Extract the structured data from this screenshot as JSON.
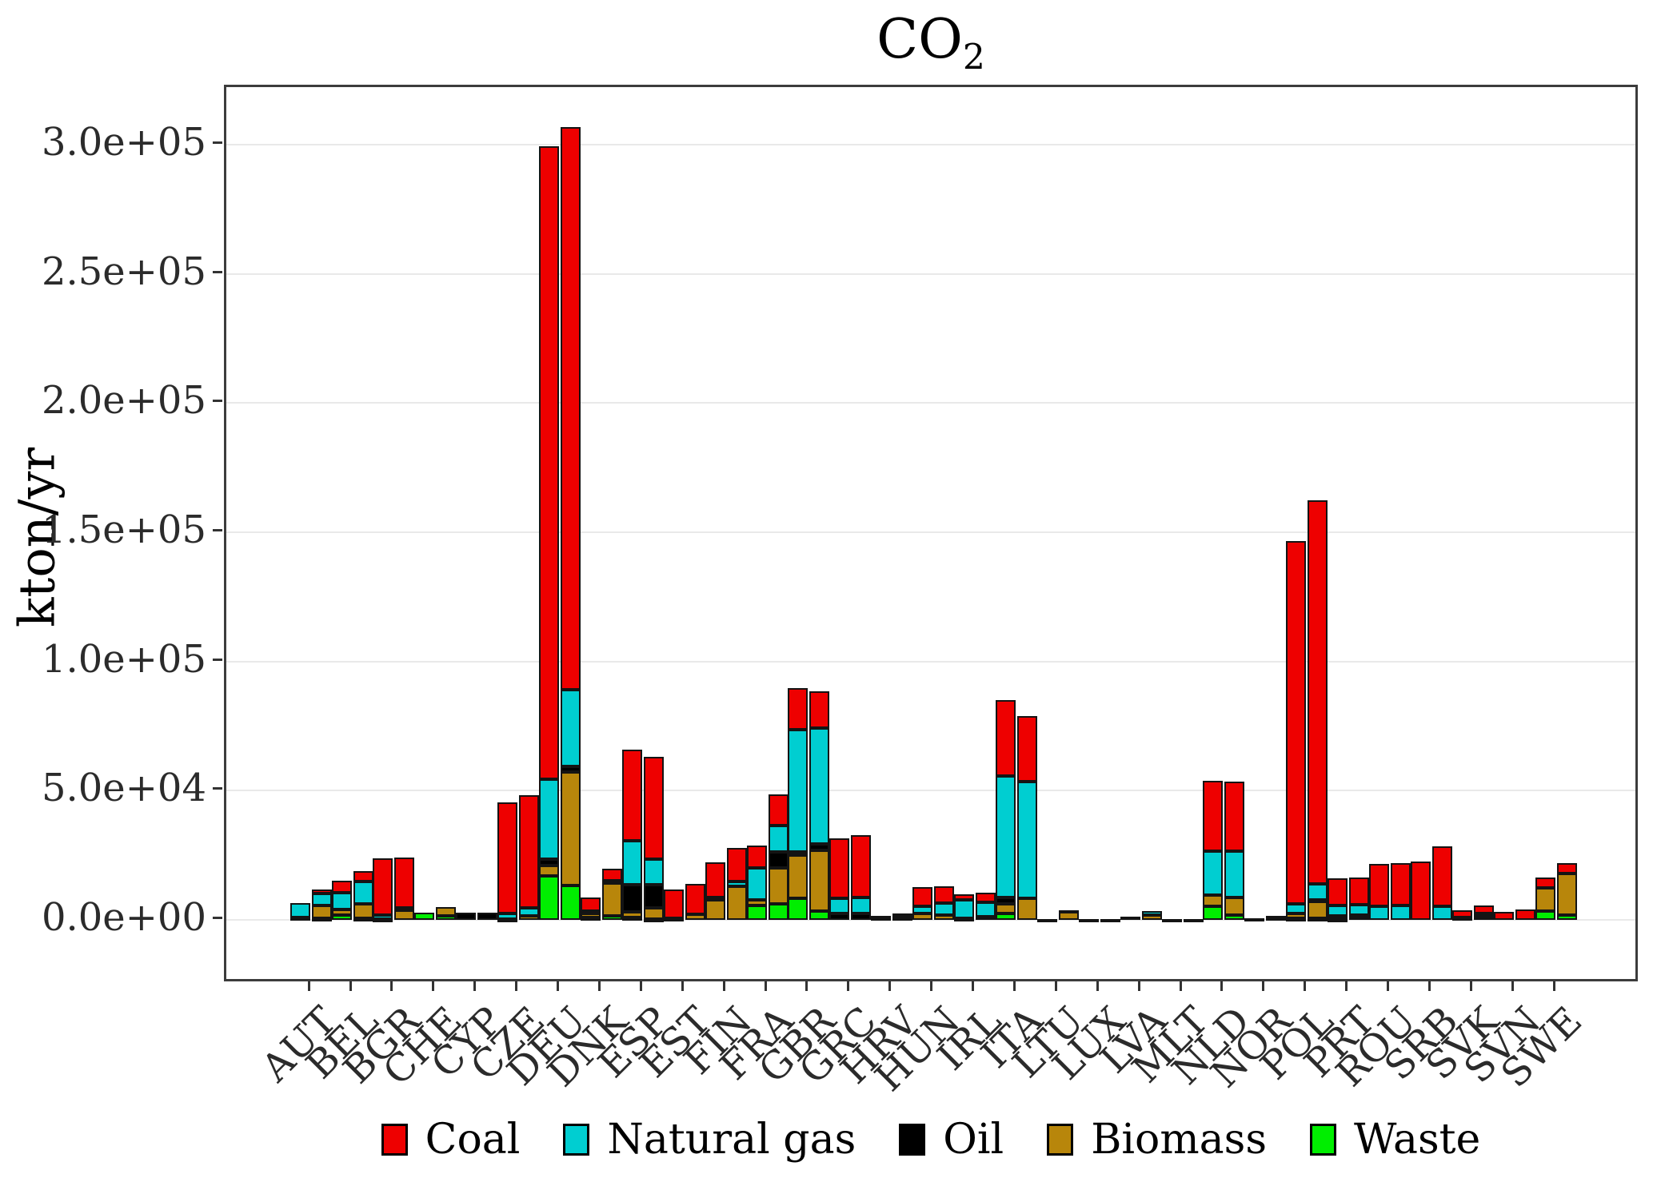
{
  "chart": {
    "title_main": "CO",
    "title_sub": "2",
    "ylabel": "kton/yr",
    "y_tick_labels": [
      "0.0e+00",
      "5.0e+04",
      "1.0e+05",
      "1.5e+05",
      "2.0e+05",
      "2.5e+05",
      "3.0e+05"
    ],
    "legend": [
      {
        "name": "coal",
        "label": "Coal",
        "color": "#EE0000"
      },
      {
        "name": "gas",
        "label": "Natural gas",
        "color": "#00CED1"
      },
      {
        "name": "oil",
        "label": "Oil",
        "color": "#000000"
      },
      {
        "name": "biomass",
        "label": "Biomass",
        "color": "#B8860B"
      },
      {
        "name": "waste",
        "label": "Waste",
        "color": "#00EE00"
      }
    ]
  },
  "chart_data": {
    "type": "bar",
    "stacked": true,
    "title": "CO2",
    "ylabel": "kton/yr",
    "unit": "kton/yr",
    "ylim": [
      0,
      320000
    ],
    "y_tick_values": [
      0,
      50000,
      100000,
      150000,
      200000,
      250000,
      300000
    ],
    "grid": "horizontal-major-only",
    "legend_position": "bottom",
    "bars_per_category": 2,
    "stack_order_bottom_to_top": [
      "waste",
      "biomass",
      "oil",
      "gas",
      "coal"
    ],
    "series_colors": {
      "coal": "#EE0000",
      "gas": "#00CED1",
      "oil": "#000000",
      "biomass": "#B8860B",
      "waste": "#00EE00"
    },
    "categories": [
      "AUT",
      "BEL",
      "BGR",
      "CHE",
      "CYP",
      "CZE",
      "DEU",
      "DNK",
      "ESP",
      "EST",
      "FIN",
      "FRA",
      "GBR",
      "GRC",
      "HRV",
      "HUN",
      "IRL",
      "ITA",
      "LTU",
      "LUX",
      "LVA",
      "MLT",
      "NLD",
      "NOR",
      "POL",
      "PRT",
      "ROU",
      "SRB",
      "SVK",
      "SVN",
      "SWE"
    ],
    "values": [
      {
        "country": "AUT",
        "bars": [
          {
            "coal": 0,
            "gas": 5400,
            "oil": 0,
            "biomass": 0,
            "waste": 1000
          },
          {
            "coal": 1500,
            "gas": 4600,
            "oil": 0,
            "biomass": 5200,
            "waste": 500
          }
        ]
      },
      {
        "country": "BEL",
        "bars": [
          {
            "coal": 4600,
            "gas": 6400,
            "oil": 0,
            "biomass": 2200,
            "waste": 1800
          },
          {
            "coal": 4100,
            "gas": 8500,
            "oil": 0,
            "biomass": 5700,
            "waste": 500
          }
        ]
      },
      {
        "country": "BGR",
        "bars": [
          {
            "coal": 22000,
            "gas": 1600,
            "oil": 0,
            "biomass": 0,
            "waste": 200
          },
          {
            "coal": 19500,
            "gas": 900,
            "oil": 0,
            "biomass": 3600,
            "waste": 0
          }
        ]
      },
      {
        "country": "CHE",
        "bars": [
          {
            "coal": 0,
            "gas": 0,
            "oil": 0,
            "biomass": 0,
            "waste": 2700
          },
          {
            "coal": 0,
            "gas": 0,
            "oil": 0,
            "biomass": 3400,
            "waste": 1650
          }
        ]
      },
      {
        "country": "CYP",
        "bars": [
          {
            "coal": 0,
            "gas": 0,
            "oil": 2700,
            "biomass": 0,
            "waste": 0
          },
          {
            "coal": 0,
            "gas": 0,
            "oil": 2700,
            "biomass": 0,
            "waste": 0
          }
        ]
      },
      {
        "country": "CZE",
        "bars": [
          {
            "coal": 43100,
            "gas": 2100,
            "oil": 0,
            "biomass": 400,
            "waste": 0
          },
          {
            "coal": 43400,
            "gas": 3300,
            "oil": 0,
            "biomass": 1400,
            "waste": 0
          }
        ]
      },
      {
        "country": "DEU",
        "bars": [
          {
            "coal": 244800,
            "gas": 30900,
            "oil": 2600,
            "biomass": 4100,
            "waste": 16900
          },
          {
            "coal": 217700,
            "gas": 29600,
            "oil": 2300,
            "biomass": 43800,
            "waste": 13300
          }
        ]
      },
      {
        "country": "DNK",
        "bars": [
          {
            "coal": 5400,
            "gas": 1000,
            "oil": 0,
            "biomass": 1500,
            "waste": 900
          },
          {
            "coal": 4400,
            "gas": 1000,
            "oil": 0,
            "biomass": 12900,
            "waste": 1400
          }
        ]
      },
      {
        "country": "ESP",
        "bars": [
          {
            "coal": 35500,
            "gas": 16900,
            "oil": 10600,
            "biomass": 2100,
            "waste": 900
          },
          {
            "coal": 39400,
            "gas": 10000,
            "oil": 8900,
            "biomass": 4300,
            "waste": 400
          }
        ]
      },
      {
        "country": "EST",
        "bars": [
          {
            "coal": 11000,
            "gas": 0,
            "oil": 0,
            "biomass": 700,
            "waste": 0
          },
          {
            "coal": 11600,
            "gas": 0,
            "oil": 0,
            "biomass": 2200,
            "waste": 0
          }
        ]
      },
      {
        "country": "FIN",
        "bars": [
          {
            "coal": 13500,
            "gas": 1200,
            "oil": 0,
            "biomass": 7600,
            "waste": 0
          },
          {
            "coal": 12900,
            "gas": 1800,
            "oil": 0,
            "biomass": 13100,
            "waste": 0
          }
        ]
      },
      {
        "country": "FRA",
        "bars": [
          {
            "coal": 8800,
            "gas": 12400,
            "oil": 0,
            "biomass": 2000,
            "waste": 5600
          },
          {
            "coal": 11900,
            "gas": 10300,
            "oil": 6000,
            "biomass": 13900,
            "waste": 6300
          }
        ]
      },
      {
        "country": "GBR",
        "bars": [
          {
            "coal": 16000,
            "gas": 47400,
            "oil": 1300,
            "biomass": 16700,
            "waste": 8200
          },
          {
            "coal": 14400,
            "gas": 44600,
            "oil": 2600,
            "biomass": 23400,
            "waste": 3500
          }
        ]
      },
      {
        "country": "GRC",
        "bars": [
          {
            "coal": 23400,
            "gas": 5700,
            "oil": 2500,
            "biomass": 0,
            "waste": 0
          },
          {
            "coal": 24200,
            "gas": 6200,
            "oil": 2500,
            "biomass": 0,
            "waste": 0
          }
        ]
      },
      {
        "country": "HRV",
        "bars": [
          {
            "coal": 800,
            "gas": 800,
            "oil": 0,
            "biomass": 0,
            "waste": 0
          },
          {
            "coal": 1100,
            "gas": 500,
            "oil": 900,
            "biomass": 0,
            "waste": 0
          }
        ]
      },
      {
        "country": "HUN",
        "bars": [
          {
            "coal": 7500,
            "gas": 2800,
            "oil": 0,
            "biomass": 2500,
            "waste": 0
          },
          {
            "coal": 6500,
            "gas": 4600,
            "oil": 0,
            "biomass": 2000,
            "waste": 0
          }
        ]
      },
      {
        "country": "IRL",
        "bars": [
          {
            "coal": 2300,
            "gas": 6900,
            "oil": 0,
            "biomass": 0,
            "waste": 700
          },
          {
            "coal": 3700,
            "gas": 5700,
            "oil": 0,
            "biomass": 1100,
            "waste": 0
          }
        ]
      },
      {
        "country": "ITA",
        "bars": [
          {
            "coal": 29200,
            "gas": 47000,
            "oil": 2600,
            "biomass": 3600,
            "waste": 2500
          },
          {
            "coal": 25200,
            "gas": 45200,
            "oil": 0,
            "biomass": 8400,
            "waste": 0
          }
        ]
      },
      {
        "country": "LTU",
        "bars": [
          {
            "coal": 0,
            "gas": 400,
            "oil": 0,
            "biomass": 0,
            "waste": 0
          },
          {
            "coal": 0,
            "gas": 0,
            "oil": 700,
            "biomass": 3000,
            "waste": 0
          }
        ]
      },
      {
        "country": "LUX",
        "bars": [
          {
            "coal": 0,
            "gas": 300,
            "oil": 0,
            "biomass": 0,
            "waste": 0
          },
          {
            "coal": 0,
            "gas": 0,
            "oil": 0,
            "biomass": 400,
            "waste": 0
          }
        ]
      },
      {
        "country": "LVA",
        "bars": [
          {
            "coal": 0,
            "gas": 1300,
            "oil": 0,
            "biomass": 0,
            "waste": 0
          },
          {
            "coal": 0,
            "gas": 1400,
            "oil": 0,
            "biomass": 2000,
            "waste": 0
          }
        ]
      },
      {
        "country": "MLT",
        "bars": [
          {
            "coal": 0,
            "gas": 0,
            "oil": 400,
            "biomass": 0,
            "waste": 0
          },
          {
            "coal": 0,
            "gas": 0,
            "oil": 200,
            "biomass": 0,
            "waste": 0
          }
        ]
      },
      {
        "country": "NLD",
        "bars": [
          {
            "coal": 27100,
            "gas": 17200,
            "oil": 0,
            "biomass": 4100,
            "waste": 5400
          },
          {
            "coal": 26800,
            "gas": 18000,
            "oil": 0,
            "biomass": 6700,
            "waste": 2000
          }
        ]
      },
      {
        "country": "NOR",
        "bars": [
          {
            "coal": 0,
            "gas": 0,
            "oil": 0,
            "biomass": 0,
            "waste": 600
          },
          {
            "coal": 0,
            "gas": 0,
            "oil": 500,
            "biomass": 900,
            "waste": 0
          }
        ]
      },
      {
        "country": "POL",
        "bars": [
          {
            "coal": 140400,
            "gas": 3600,
            "oil": 0,
            "biomass": 1800,
            "waste": 700
          },
          {
            "coal": 148400,
            "gas": 6000,
            "oil": 700,
            "biomass": 6500,
            "waste": 600
          }
        ]
      },
      {
        "country": "PRT",
        "bars": [
          {
            "coal": 10300,
            "gas": 4100,
            "oil": 1200,
            "biomass": 0,
            "waste": 400
          },
          {
            "coal": 10300,
            "gas": 4100,
            "oil": 700,
            "biomass": 1200,
            "waste": 0
          }
        ]
      },
      {
        "country": "ROU",
        "bars": [
          {
            "coal": 16300,
            "gas": 5300,
            "oil": 0,
            "biomass": 0,
            "waste": 0
          },
          {
            "coal": 16500,
            "gas": 5600,
            "oil": 0,
            "biomass": 0,
            "waste": 0
          }
        ]
      },
      {
        "country": "SRB",
        "bars": [
          {
            "coal": 22600,
            "gas": 0,
            "oil": 0,
            "biomass": 0,
            "waste": 0
          },
          {
            "coal": 22900,
            "gas": 5400,
            "oil": 0,
            "biomass": 0,
            "waste": 0
          }
        ]
      },
      {
        "country": "SVK",
        "bars": [
          {
            "coal": 2800,
            "gas": 0,
            "oil": 900,
            "biomass": 0,
            "waste": 0
          },
          {
            "coal": 3100,
            "gas": 700,
            "oil": 500,
            "biomass": 1400,
            "waste": 0
          }
        ]
      },
      {
        "country": "SVN",
        "bars": [
          {
            "coal": 3000,
            "gas": 0,
            "oil": 0,
            "biomass": 0,
            "waste": 0
          },
          {
            "coal": 4000,
            "gas": 0,
            "oil": 0,
            "biomass": 0,
            "waste": 0
          }
        ]
      },
      {
        "country": "SWE",
        "bars": [
          {
            "coal": 4000,
            "gas": 0,
            "oil": 0,
            "biomass": 9000,
            "waste": 3300
          },
          {
            "coal": 4100,
            "gas": 0,
            "oil": 0,
            "biomass": 16000,
            "waste": 1800
          }
        ]
      }
    ]
  }
}
